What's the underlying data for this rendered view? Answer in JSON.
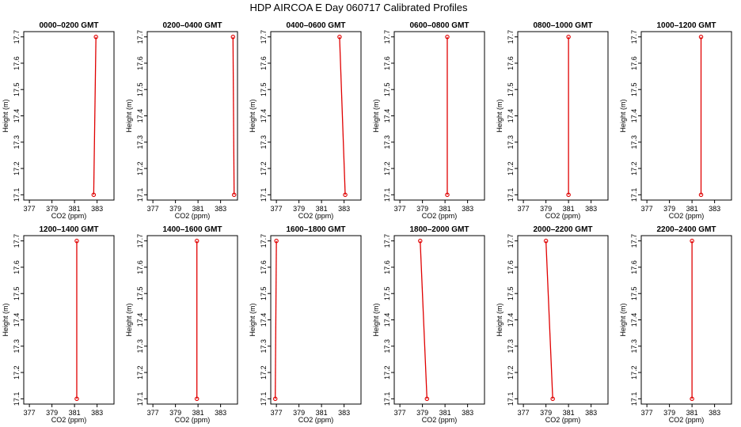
{
  "title": "HDP  AIRCOA E  Day 060717  Calibrated Profiles",
  "colors": {
    "series": "#e00000",
    "axis": "#000000"
  },
  "chart_data": [
    {
      "type": "line",
      "title": "0000–0200 GMT",
      "xlabel": "CO2 (ppm)",
      "ylabel": "Height (m)",
      "xlim": [
        376.5,
        384.5
      ],
      "ylim": [
        17.08,
        17.72
      ],
      "xticks": [
        377,
        379,
        381,
        383
      ],
      "yticks": [
        17.1,
        17.2,
        17.3,
        17.4,
        17.5,
        17.6,
        17.7
      ],
      "x": [
        382.7,
        382.9
      ],
      "y": [
        17.1,
        17.7
      ]
    },
    {
      "type": "line",
      "title": "0200–0400 GMT",
      "xlabel": "CO2 (ppm)",
      "ylabel": "Height (m)",
      "xlim": [
        376.5,
        384.5
      ],
      "ylim": [
        17.08,
        17.72
      ],
      "xticks": [
        377,
        379,
        381,
        383
      ],
      "yticks": [
        17.1,
        17.2,
        17.3,
        17.4,
        17.5,
        17.6,
        17.7
      ],
      "x": [
        384.2,
        384.1
      ],
      "y": [
        17.1,
        17.7
      ]
    },
    {
      "type": "line",
      "title": "0400–0600 GMT",
      "xlabel": "CO2 (ppm)",
      "ylabel": "Height (m)",
      "xlim": [
        376.5,
        384.5
      ],
      "ylim": [
        17.08,
        17.72
      ],
      "xticks": [
        377,
        379,
        381,
        383
      ],
      "yticks": [
        17.1,
        17.2,
        17.3,
        17.4,
        17.5,
        17.6,
        17.7
      ],
      "x": [
        383.1,
        382.6
      ],
      "y": [
        17.1,
        17.7
      ]
    },
    {
      "type": "line",
      "title": "0600–0800 GMT",
      "xlabel": "CO2 (ppm)",
      "ylabel": "Height (m)",
      "xlim": [
        376.5,
        384.5
      ],
      "ylim": [
        17.08,
        17.72
      ],
      "xticks": [
        377,
        379,
        381,
        383
      ],
      "yticks": [
        17.1,
        17.2,
        17.3,
        17.4,
        17.5,
        17.6,
        17.7
      ],
      "x": [
        381.2,
        381.2
      ],
      "y": [
        17.1,
        17.7
      ]
    },
    {
      "type": "line",
      "title": "0800–1000 GMT",
      "xlabel": "CO2 (ppm)",
      "ylabel": "Height (m)",
      "xlim": [
        376.5,
        384.5
      ],
      "ylim": [
        17.08,
        17.72
      ],
      "xticks": [
        377,
        379,
        381,
        383
      ],
      "yticks": [
        17.1,
        17.2,
        17.3,
        17.4,
        17.5,
        17.6,
        17.7
      ],
      "x": [
        381.0,
        381.0
      ],
      "y": [
        17.1,
        17.7
      ]
    },
    {
      "type": "line",
      "title": "1000–1200 GMT",
      "xlabel": "CO2 (ppm)",
      "ylabel": "Height (m)",
      "xlim": [
        376.5,
        384.5
      ],
      "ylim": [
        17.08,
        17.72
      ],
      "xticks": [
        377,
        379,
        381,
        383
      ],
      "yticks": [
        17.1,
        17.2,
        17.3,
        17.4,
        17.5,
        17.6,
        17.7
      ],
      "x": [
        381.8,
        381.8
      ],
      "y": [
        17.1,
        17.7
      ]
    },
    {
      "type": "line",
      "title": "1200–1400 GMT",
      "xlabel": "CO2 (ppm)",
      "ylabel": "Height (m)",
      "xlim": [
        376.5,
        384.5
      ],
      "ylim": [
        17.08,
        17.72
      ],
      "xticks": [
        377,
        379,
        381,
        383
      ],
      "yticks": [
        17.1,
        17.2,
        17.3,
        17.4,
        17.5,
        17.6,
        17.7
      ],
      "x": [
        381.2,
        381.2
      ],
      "y": [
        17.1,
        17.7
      ]
    },
    {
      "type": "line",
      "title": "1400–1600 GMT",
      "xlabel": "CO2 (ppm)",
      "ylabel": "Height (m)",
      "xlim": [
        376.5,
        384.5
      ],
      "ylim": [
        17.08,
        17.72
      ],
      "xticks": [
        377,
        379,
        381,
        383
      ],
      "yticks": [
        17.1,
        17.2,
        17.3,
        17.4,
        17.5,
        17.6,
        17.7
      ],
      "x": [
        380.9,
        380.9
      ],
      "y": [
        17.1,
        17.7
      ]
    },
    {
      "type": "line",
      "title": "1600–1800 GMT",
      "xlabel": "CO2 (ppm)",
      "ylabel": "Height (m)",
      "xlim": [
        376.5,
        384.5
      ],
      "ylim": [
        17.08,
        17.72
      ],
      "xticks": [
        377,
        379,
        381,
        383
      ],
      "yticks": [
        17.1,
        17.2,
        17.3,
        17.4,
        17.5,
        17.6,
        17.7
      ],
      "x": [
        376.9,
        377.0
      ],
      "y": [
        17.1,
        17.7
      ]
    },
    {
      "type": "line",
      "title": "1800–2000 GMT",
      "xlabel": "CO2 (ppm)",
      "ylabel": "Height (m)",
      "xlim": [
        376.5,
        384.5
      ],
      "ylim": [
        17.08,
        17.72
      ],
      "xticks": [
        377,
        379,
        381,
        383
      ],
      "yticks": [
        17.1,
        17.2,
        17.3,
        17.4,
        17.5,
        17.6,
        17.7
      ],
      "x": [
        379.4,
        378.8
      ],
      "y": [
        17.1,
        17.7
      ]
    },
    {
      "type": "line",
      "title": "2000–2200 GMT",
      "xlabel": "CO2 (ppm)",
      "ylabel": "Height (m)",
      "xlim": [
        376.5,
        384.5
      ],
      "ylim": [
        17.08,
        17.72
      ],
      "xticks": [
        377,
        379,
        381,
        383
      ],
      "yticks": [
        17.1,
        17.2,
        17.3,
        17.4,
        17.5,
        17.6,
        17.7
      ],
      "x": [
        379.6,
        379.0
      ],
      "y": [
        17.1,
        17.7
      ]
    },
    {
      "type": "line",
      "title": "2200–2400 GMT",
      "xlabel": "CO2 (ppm)",
      "ylabel": "Height (m)",
      "xlim": [
        376.5,
        384.5
      ],
      "ylim": [
        17.08,
        17.72
      ],
      "xticks": [
        377,
        379,
        381,
        383
      ],
      "yticks": [
        17.1,
        17.2,
        17.3,
        17.4,
        17.5,
        17.6,
        17.7
      ],
      "x": [
        381.0,
        381.0
      ],
      "y": [
        17.1,
        17.7
      ]
    }
  ]
}
